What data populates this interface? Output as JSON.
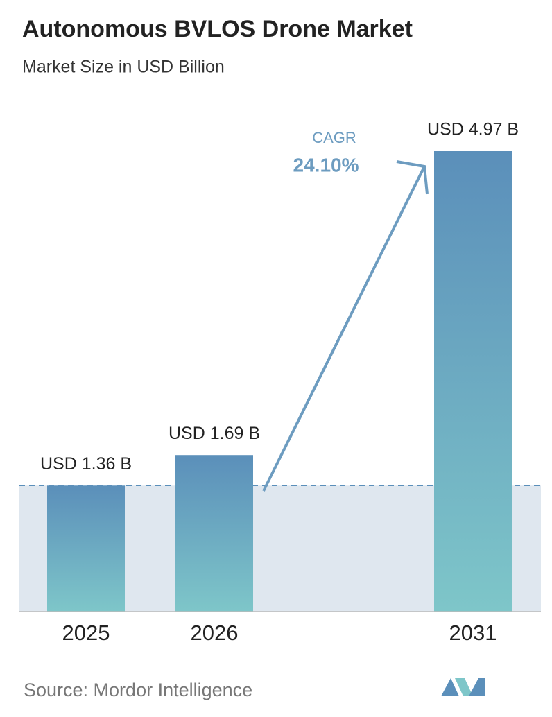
{
  "chart_data": {
    "type": "bar",
    "title": "Autonomous BVLOS Drone Market",
    "subtitle": "Market Size in USD Billion",
    "categories": [
      "2025",
      "2026",
      "2031"
    ],
    "values": [
      1.36,
      1.69,
      4.97
    ],
    "value_labels": [
      "USD 1.36 B",
      "USD 1.69 B",
      "USD 4.97 B"
    ],
    "color": [
      "#5b8fba",
      "#7ec6c9"
    ],
    "annotation": {
      "label": "CAGR",
      "value": "24.10%"
    },
    "source": "Source: Mordor Intelligence"
  }
}
